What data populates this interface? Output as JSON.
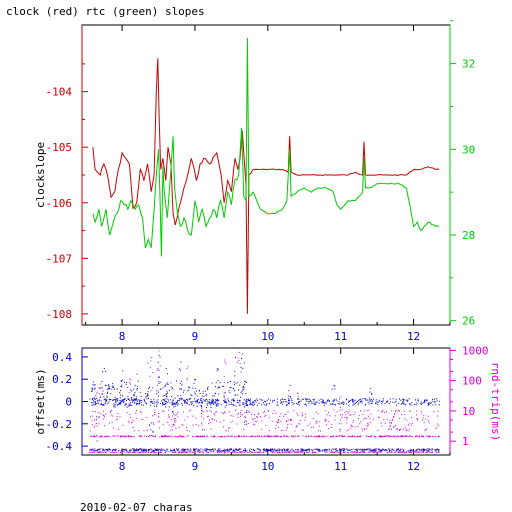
{
  "title": "clock (red) rtc (green) slopes",
  "footer": "2010-02-07 charas",
  "colors": {
    "clock": "#cc0000",
    "rtc": "#00cc00",
    "offset": "#0000cc",
    "rndtrip": "#dd00dd",
    "axis": "#000000"
  },
  "chart_data": [
    {
      "type": "line",
      "ylabel": "clockslope",
      "xlim": [
        7.45,
        12.5
      ],
      "ylim": [
        -108.2,
        -102.8
      ],
      "y2lim": [
        25.9,
        32.9
      ],
      "x_ticks": [
        "8",
        "9",
        "10",
        "11",
        "12"
      ],
      "y_ticks": [
        "-104",
        "-105",
        "-106",
        "-107",
        "-108"
      ],
      "y2_ticks": [
        "32",
        "30",
        "28",
        "26"
      ],
      "grid": false,
      "series": [
        {
          "name": "clock",
          "axis": "left",
          "points": [
            [
              7.6,
              -105.0
            ],
            [
              7.63,
              -105.4
            ],
            [
              7.7,
              -105.5
            ],
            [
              7.75,
              -105.3
            ],
            [
              7.8,
              -105.5
            ],
            [
              7.85,
              -105.9
            ],
            [
              7.9,
              -105.8
            ],
            [
              7.95,
              -105.4
            ],
            [
              8.0,
              -105.1
            ],
            [
              8.05,
              -105.2
            ],
            [
              8.1,
              -105.3
            ],
            [
              8.15,
              -106.1
            ],
            [
              8.2,
              -106.0
            ],
            [
              8.25,
              -105.4
            ],
            [
              8.3,
              -105.6
            ],
            [
              8.35,
              -105.3
            ],
            [
              8.4,
              -105.8
            ],
            [
              8.44,
              -105.5
            ],
            [
              8.47,
              -104.0
            ],
            [
              8.49,
              -103.4
            ],
            [
              8.51,
              -104.5
            ],
            [
              8.53,
              -105.4
            ],
            [
              8.56,
              -105.2
            ],
            [
              8.6,
              -105.6
            ],
            [
              8.63,
              -105.0
            ],
            [
              8.67,
              -105.3
            ],
            [
              8.7,
              -106.2
            ],
            [
              8.73,
              -106.4
            ],
            [
              8.78,
              -106.1
            ],
            [
              8.82,
              -105.9
            ],
            [
              8.9,
              -105.5
            ],
            [
              8.95,
              -105.2
            ],
            [
              9.02,
              -105.6
            ],
            [
              9.07,
              -105.3
            ],
            [
              9.12,
              -105.2
            ],
            [
              9.2,
              -105.3
            ],
            [
              9.3,
              -105.1
            ],
            [
              9.36,
              -105.5
            ],
            [
              9.4,
              -106.0
            ],
            [
              9.45,
              -105.6
            ],
            [
              9.5,
              -105.8
            ],
            [
              9.55,
              -105.2
            ],
            [
              9.59,
              -105.4
            ],
            [
              9.62,
              -105.2
            ],
            [
              9.65,
              -104.7
            ],
            [
              9.68,
              -105.3
            ],
            [
              9.7,
              -105.7
            ],
            [
              9.72,
              -108.0
            ],
            [
              9.74,
              -105.5
            ],
            [
              9.8,
              -105.4
            ],
            [
              9.9,
              -105.4
            ],
            [
              10.0,
              -105.4
            ],
            [
              10.1,
              -105.4
            ],
            [
              10.2,
              -105.4
            ],
            [
              10.28,
              -105.45
            ],
            [
              10.3,
              -104.8
            ],
            [
              10.32,
              -105.45
            ],
            [
              10.4,
              -105.5
            ],
            [
              10.5,
              -105.5
            ],
            [
              10.6,
              -105.5
            ],
            [
              10.7,
              -105.5
            ],
            [
              10.8,
              -105.5
            ],
            [
              10.9,
              -105.5
            ],
            [
              11.0,
              -105.5
            ],
            [
              11.1,
              -105.5
            ],
            [
              11.2,
              -105.45
            ],
            [
              11.3,
              -105.5
            ],
            [
              11.32,
              -104.9
            ],
            [
              11.34,
              -105.5
            ],
            [
              11.4,
              -105.5
            ],
            [
              11.5,
              -105.5
            ],
            [
              11.6,
              -105.5
            ],
            [
              11.7,
              -105.5
            ],
            [
              11.8,
              -105.5
            ],
            [
              11.9,
              -105.5
            ],
            [
              12.0,
              -105.4
            ],
            [
              12.1,
              -105.4
            ],
            [
              12.2,
              -105.35
            ],
            [
              12.3,
              -105.4
            ],
            [
              12.35,
              -105.4
            ]
          ]
        },
        {
          "name": "rtc",
          "axis": "right",
          "points": [
            [
              7.6,
              28.5
            ],
            [
              7.63,
              28.3
            ],
            [
              7.68,
              28.6
            ],
            [
              7.72,
              28.2
            ],
            [
              7.78,
              28.6
            ],
            [
              7.83,
              28.0
            ],
            [
              7.88,
              28.3
            ],
            [
              7.93,
              28.5
            ],
            [
              7.98,
              28.8
            ],
            [
              8.03,
              28.7
            ],
            [
              8.08,
              28.6
            ],
            [
              8.12,
              28.8
            ],
            [
              8.18,
              28.6
            ],
            [
              8.23,
              28.7
            ],
            [
              8.28,
              28.4
            ],
            [
              8.32,
              27.7
            ],
            [
              8.36,
              27.9
            ],
            [
              8.4,
              27.7
            ],
            [
              8.44,
              28.6
            ],
            [
              8.47,
              29.4
            ],
            [
              8.5,
              30.0
            ],
            [
              8.52,
              28.9
            ],
            [
              8.54,
              27.5
            ],
            [
              8.56,
              29.6
            ],
            [
              8.58,
              29.0
            ],
            [
              8.62,
              28.4
            ],
            [
              8.66,
              29.3
            ],
            [
              8.7,
              30.3
            ],
            [
              8.72,
              29.1
            ],
            [
              8.76,
              28.5
            ],
            [
              8.8,
              28.2
            ],
            [
              8.85,
              28.4
            ],
            [
              8.9,
              28.1
            ],
            [
              8.95,
              28.0
            ],
            [
              9.0,
              28.8
            ],
            [
              9.05,
              28.3
            ],
            [
              9.1,
              28.6
            ],
            [
              9.15,
              28.2
            ],
            [
              9.2,
              28.4
            ],
            [
              9.25,
              28.6
            ],
            [
              9.3,
              28.4
            ],
            [
              9.35,
              28.8
            ],
            [
              9.4,
              28.4
            ],
            [
              9.45,
              29.0
            ],
            [
              9.5,
              28.7
            ],
            [
              9.55,
              29.3
            ],
            [
              9.6,
              29.4
            ],
            [
              9.64,
              30.5
            ],
            [
              9.67,
              28.9
            ],
            [
              9.7,
              28.8
            ],
            [
              9.72,
              32.6
            ],
            [
              9.74,
              28.9
            ],
            [
              9.8,
              29.0
            ],
            [
              9.9,
              28.6
            ],
            [
              10.0,
              28.5
            ],
            [
              10.1,
              28.5
            ],
            [
              10.2,
              28.6
            ],
            [
              10.26,
              28.8
            ],
            [
              10.3,
              30.0
            ],
            [
              10.32,
              28.9
            ],
            [
              10.4,
              29.0
            ],
            [
              10.5,
              29.1
            ],
            [
              10.6,
              29.0
            ],
            [
              10.7,
              29.1
            ],
            [
              10.8,
              29.1
            ],
            [
              10.9,
              29.0
            ],
            [
              10.95,
              28.7
            ],
            [
              11.0,
              28.6
            ],
            [
              11.1,
              28.8
            ],
            [
              11.2,
              28.8
            ],
            [
              11.3,
              29.0
            ],
            [
              11.32,
              29.8
            ],
            [
              11.34,
              29.1
            ],
            [
              11.4,
              29.1
            ],
            [
              11.5,
              29.2
            ],
            [
              11.6,
              29.2
            ],
            [
              11.7,
              29.2
            ],
            [
              11.8,
              29.2
            ],
            [
              11.9,
              29.1
            ],
            [
              11.95,
              28.7
            ],
            [
              12.0,
              28.2
            ],
            [
              12.05,
              28.3
            ],
            [
              12.1,
              28.1
            ],
            [
              12.2,
              28.3
            ],
            [
              12.3,
              28.2
            ],
            [
              12.35,
              28.2
            ]
          ]
        }
      ]
    },
    {
      "type": "scatter",
      "ylabel": "offset(ms)",
      "y2label": "rnd-trip(ms)",
      "xlim": [
        7.45,
        12.5
      ],
      "ylim": [
        -0.48,
        0.48
      ],
      "y2_log": true,
      "y2lim": [
        0.35,
        1200
      ],
      "x_ticks": [
        "8",
        "9",
        "10",
        "11",
        "12"
      ],
      "y_ticks": [
        "0.4",
        "0.2",
        "0",
        "-0.2",
        "-0.4"
      ],
      "y2_ticks": [
        "1000",
        "100",
        "10",
        "1"
      ],
      "grid": false,
      "series": [
        {
          "name": "offset",
          "axis": "left",
          "bands": [
            {
              "x": [
                7.55,
                12.35
              ],
              "center": 0.0,
              "spread": 0.03
            },
            {
              "x": [
                7.55,
                9.7
              ],
              "center": 0.07,
              "spread": 0.12
            },
            {
              "x": [
                7.55,
                12.35
              ],
              "center": -0.43,
              "spread": 0.01
            }
          ],
          "spikes": [
            [
              7.6,
              0.18
            ],
            [
              7.75,
              0.3
            ],
            [
              8.0,
              0.28
            ],
            [
              8.2,
              0.25
            ],
            [
              8.35,
              0.35
            ],
            [
              8.5,
              0.42
            ],
            [
              8.6,
              0.3
            ],
            [
              8.8,
              0.36
            ],
            [
              9.0,
              0.2
            ],
            [
              9.3,
              0.3
            ],
            [
              9.55,
              0.4
            ],
            [
              9.65,
              0.43
            ],
            [
              10.3,
              0.15
            ],
            [
              10.9,
              0.15
            ],
            [
              11.4,
              0.12
            ],
            [
              7.65,
              -0.35
            ],
            [
              8.4,
              -0.3
            ],
            [
              8.7,
              -0.2
            ],
            [
              9.1,
              -0.25
            ],
            [
              9.7,
              -0.2
            ]
          ]
        },
        {
          "name": "rnd-trip",
          "axis": "right",
          "bands": [
            {
              "x": [
                7.55,
                12.35
              ],
              "center": 1.5,
              "spread": 0.02
            },
            {
              "x": [
                7.55,
                12.35
              ],
              "center": 5,
              "spread": 0.35
            },
            {
              "x": [
                7.55,
                12.35
              ],
              "center": 0.45,
              "spread": 0.02
            }
          ],
          "spikes": [
            [
              7.7,
              80
            ],
            [
              8.1,
              120
            ],
            [
              8.4,
              600
            ],
            [
              8.5,
              1000
            ],
            [
              8.9,
              300
            ],
            [
              9.4,
              500
            ],
            [
              9.6,
              900
            ],
            [
              10.4,
              40
            ],
            [
              11.0,
              30
            ]
          ]
        }
      ]
    }
  ]
}
